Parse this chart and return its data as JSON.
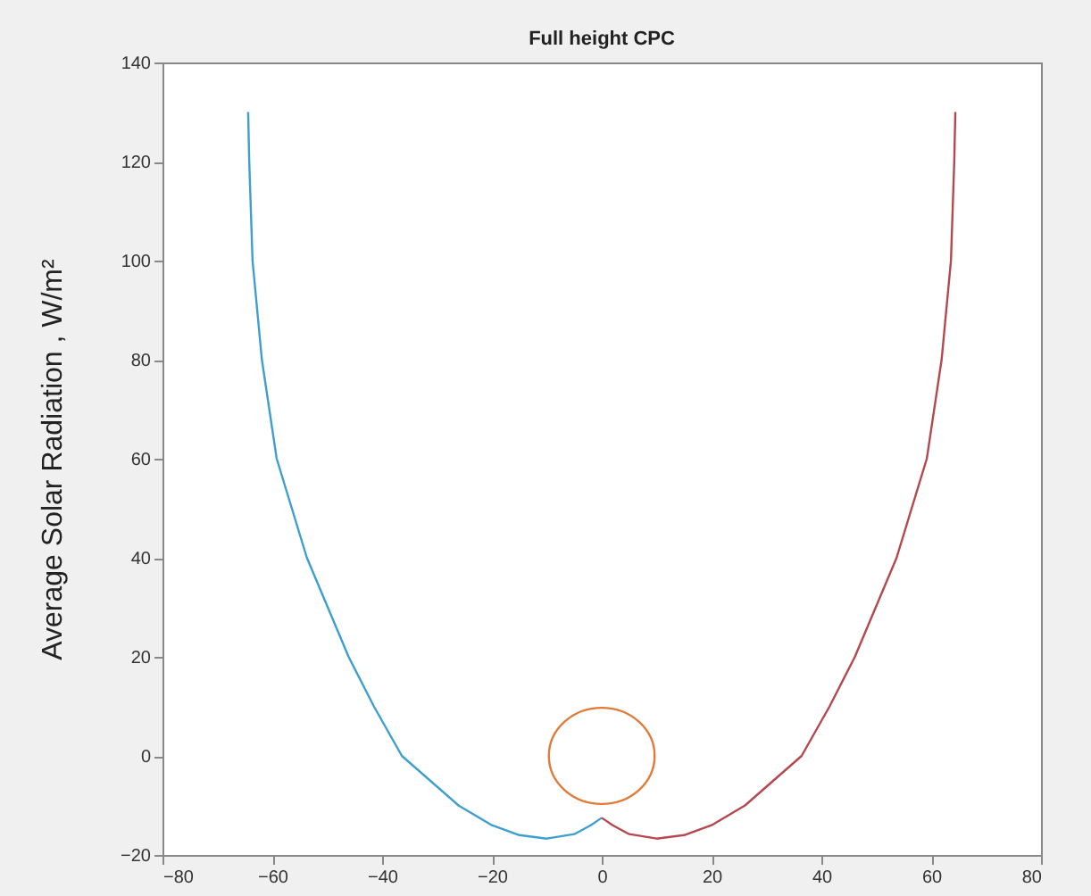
{
  "chart_data": {
    "type": "line",
    "title": "Full height CPC",
    "ylabel": "Average Solar Radiation , W/m²",
    "xlim": [
      -80,
      80
    ],
    "xticks": [
      -80,
      -60,
      -40,
      -20,
      0,
      20,
      40,
      60,
      80
    ],
    "ylim": [
      -20,
      140
    ],
    "yticks": [
      -20,
      0,
      20,
      40,
      60,
      80,
      100,
      120,
      140
    ],
    "grid": false,
    "legend": false,
    "marker": "none",
    "line_style": "solid",
    "series": [
      {
        "color": "#3d9fd0",
        "x": [
          -64.4,
          -64.2,
          -63.6,
          -61.9,
          -59.2,
          -53.7,
          -46.1,
          -41.5,
          -36.4,
          -26.1,
          -20,
          -15,
          -10,
          -5,
          -2,
          0
        ],
        "values": [
          130,
          120,
          100,
          80,
          60,
          40,
          20,
          10,
          0,
          -10,
          -14,
          -16,
          -16.7,
          -15.8,
          -14,
          -12.5
        ]
      },
      {
        "color": "#b5474f",
        "x": [
          0,
          2,
          5,
          10,
          15,
          20,
          26.1,
          36.4,
          41.5,
          46.1,
          53.7,
          59.2,
          61.9,
          63.6,
          64.2,
          64.4
        ],
        "values": [
          -12.5,
          -14,
          -15.8,
          -16.7,
          -16,
          -14,
          -10,
          0,
          10,
          20,
          40,
          60,
          80,
          100,
          120,
          130
        ]
      }
    ]
  }
}
